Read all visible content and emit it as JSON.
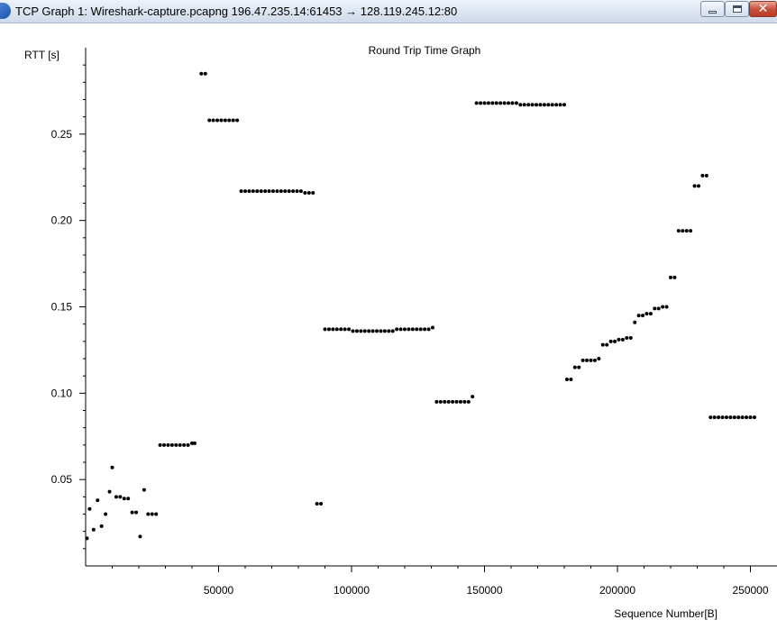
{
  "window": {
    "title": "TCP Graph 1: Wireshark-capture.pcapng 196.47.235.14:61453 → 128.119.245.12:80",
    "buttons": {
      "minimize_icon": "minimize-icon",
      "maximize_icon": "maximize-icon",
      "close_icon": "close-icon"
    }
  },
  "chart_data": {
    "type": "scatter",
    "title": "Round Trip Time Graph",
    "xlabel": "Sequence Number[B]",
    "ylabel": "RTT [s]",
    "xlim": [
      0,
      260000
    ],
    "ylim": [
      0,
      0.3
    ],
    "xticks": [
      50000,
      100000,
      150000,
      200000,
      250000
    ],
    "xtick_labels": [
      "50000",
      "100000",
      "150000",
      "200000",
      "250000"
    ],
    "yticks": [
      0.05,
      0.1,
      0.15,
      0.2,
      0.25
    ],
    "ytick_labels": [
      "0.05",
      "0.10",
      "0.15",
      "0.20",
      "0.25"
    ],
    "grid": false,
    "marker_color": "#000000",
    "series": [
      {
        "points": [
          [
            500,
            0.016
          ],
          [
            1500,
            0.033
          ],
          [
            3000,
            0.021
          ],
          [
            4500,
            0.038
          ],
          [
            6000,
            0.023
          ],
          [
            7500,
            0.03
          ],
          [
            9000,
            0.043
          ],
          [
            10000,
            0.057
          ],
          [
            11500,
            0.04
          ],
          [
            13000,
            0.04
          ],
          [
            14500,
            0.039
          ],
          [
            16000,
            0.039
          ],
          [
            17500,
            0.031
          ],
          [
            19000,
            0.031
          ],
          [
            20500,
            0.017
          ],
          [
            22000,
            0.044
          ],
          [
            23500,
            0.03
          ],
          [
            25000,
            0.03
          ],
          [
            26500,
            0.03
          ],
          [
            28000,
            0.07
          ],
          [
            29500,
            0.07
          ],
          [
            31000,
            0.07
          ],
          [
            32500,
            0.07
          ],
          [
            34000,
            0.07
          ],
          [
            35500,
            0.07
          ],
          [
            37000,
            0.07
          ],
          [
            38500,
            0.07
          ],
          [
            40000,
            0.071
          ],
          [
            41000,
            0.071
          ],
          [
            43500,
            0.285
          ],
          [
            45000,
            0.285
          ],
          [
            46500,
            0.258
          ],
          [
            48000,
            0.258
          ],
          [
            49500,
            0.258
          ],
          [
            51000,
            0.258
          ],
          [
            52500,
            0.258
          ],
          [
            54000,
            0.258
          ],
          [
            55500,
            0.258
          ],
          [
            57000,
            0.258
          ],
          [
            58500,
            0.217
          ],
          [
            60000,
            0.217
          ],
          [
            61500,
            0.217
          ],
          [
            63000,
            0.217
          ],
          [
            64500,
            0.217
          ],
          [
            66000,
            0.217
          ],
          [
            67500,
            0.217
          ],
          [
            69000,
            0.217
          ],
          [
            70500,
            0.217
          ],
          [
            72000,
            0.217
          ],
          [
            73500,
            0.217
          ],
          [
            75000,
            0.217
          ],
          [
            76500,
            0.217
          ],
          [
            78000,
            0.217
          ],
          [
            79500,
            0.217
          ],
          [
            81000,
            0.217
          ],
          [
            82500,
            0.216
          ],
          [
            84000,
            0.216
          ],
          [
            85500,
            0.216
          ],
          [
            87000,
            0.036
          ],
          [
            88500,
            0.036
          ],
          [
            90000,
            0.137
          ],
          [
            91500,
            0.137
          ],
          [
            93000,
            0.137
          ],
          [
            94500,
            0.137
          ],
          [
            96000,
            0.137
          ],
          [
            97500,
            0.137
          ],
          [
            99000,
            0.137
          ],
          [
            100500,
            0.136
          ],
          [
            102000,
            0.136
          ],
          [
            103500,
            0.136
          ],
          [
            105000,
            0.136
          ],
          [
            106500,
            0.136
          ],
          [
            108000,
            0.136
          ],
          [
            109500,
            0.136
          ],
          [
            111000,
            0.136
          ],
          [
            112500,
            0.136
          ],
          [
            114000,
            0.136
          ],
          [
            115500,
            0.136
          ],
          [
            117000,
            0.137
          ],
          [
            118500,
            0.137
          ],
          [
            120000,
            0.137
          ],
          [
            121500,
            0.137
          ],
          [
            123000,
            0.137
          ],
          [
            124500,
            0.137
          ],
          [
            126000,
            0.137
          ],
          [
            127500,
            0.137
          ],
          [
            129000,
            0.137
          ],
          [
            130500,
            0.138
          ],
          [
            132000,
            0.095
          ],
          [
            133500,
            0.095
          ],
          [
            135000,
            0.095
          ],
          [
            136500,
            0.095
          ],
          [
            138000,
            0.095
          ],
          [
            139500,
            0.095
          ],
          [
            141000,
            0.095
          ],
          [
            142500,
            0.095
          ],
          [
            144000,
            0.095
          ],
          [
            145500,
            0.098
          ],
          [
            147000,
            0.268
          ],
          [
            148500,
            0.268
          ],
          [
            150000,
            0.268
          ],
          [
            151500,
            0.268
          ],
          [
            153000,
            0.268
          ],
          [
            154500,
            0.268
          ],
          [
            156000,
            0.268
          ],
          [
            157500,
            0.268
          ],
          [
            159000,
            0.268
          ],
          [
            160500,
            0.268
          ],
          [
            162000,
            0.268
          ],
          [
            163500,
            0.267
          ],
          [
            165000,
            0.267
          ],
          [
            166500,
            0.267
          ],
          [
            168000,
            0.267
          ],
          [
            169500,
            0.267
          ],
          [
            171000,
            0.267
          ],
          [
            172500,
            0.267
          ],
          [
            174000,
            0.267
          ],
          [
            175500,
            0.267
          ],
          [
            177000,
            0.267
          ],
          [
            178500,
            0.267
          ],
          [
            180000,
            0.267
          ],
          [
            181000,
            0.108
          ],
          [
            182500,
            0.108
          ],
          [
            184000,
            0.115
          ],
          [
            185500,
            0.115
          ],
          [
            187000,
            0.119
          ],
          [
            188500,
            0.119
          ],
          [
            190000,
            0.119
          ],
          [
            191500,
            0.119
          ],
          [
            193000,
            0.12
          ],
          [
            194500,
            0.128
          ],
          [
            196000,
            0.128
          ],
          [
            197500,
            0.13
          ],
          [
            199000,
            0.13
          ],
          [
            200500,
            0.131
          ],
          [
            202000,
            0.131
          ],
          [
            203500,
            0.132
          ],
          [
            205000,
            0.132
          ],
          [
            206500,
            0.141
          ],
          [
            208000,
            0.145
          ],
          [
            209500,
            0.145
          ],
          [
            211000,
            0.146
          ],
          [
            212500,
            0.146
          ],
          [
            214000,
            0.149
          ],
          [
            215500,
            0.149
          ],
          [
            217000,
            0.15
          ],
          [
            218500,
            0.15
          ],
          [
            220000,
            0.167
          ],
          [
            221500,
            0.167
          ],
          [
            223000,
            0.194
          ],
          [
            224500,
            0.194
          ],
          [
            226000,
            0.194
          ],
          [
            227500,
            0.194
          ],
          [
            229000,
            0.22
          ],
          [
            230500,
            0.22
          ],
          [
            232000,
            0.226
          ],
          [
            233500,
            0.226
          ],
          [
            235000,
            0.086
          ],
          [
            236500,
            0.086
          ],
          [
            238000,
            0.086
          ],
          [
            239500,
            0.086
          ],
          [
            241000,
            0.086
          ],
          [
            242500,
            0.086
          ],
          [
            244000,
            0.086
          ],
          [
            245500,
            0.086
          ],
          [
            247000,
            0.086
          ],
          [
            248500,
            0.086
          ],
          [
            250000,
            0.086
          ],
          [
            251500,
            0.086
          ]
        ]
      }
    ]
  }
}
